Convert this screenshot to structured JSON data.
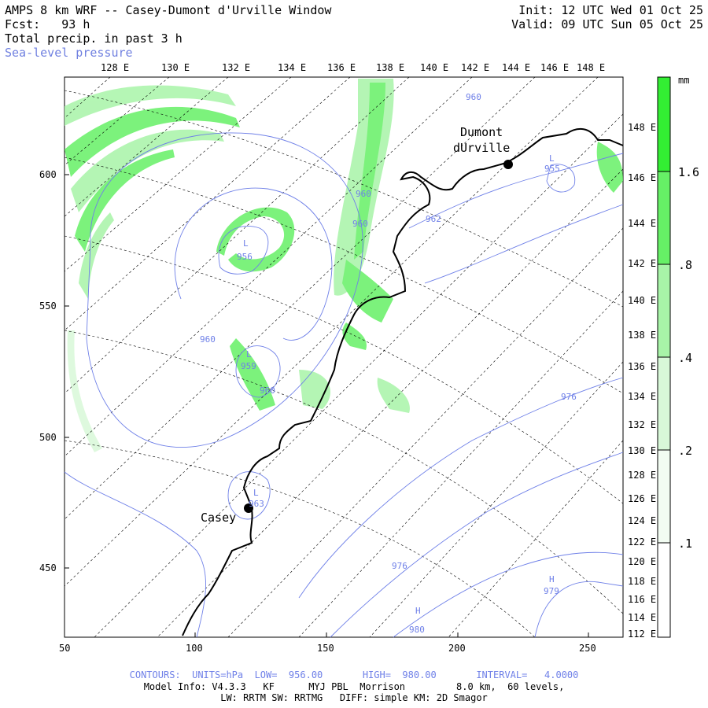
{
  "header": {
    "title": "AMPS 8 km WRF -- Casey-Dumont d'Urville Window",
    "fcst_label": "Fcst:",
    "fcst_value": "93 h",
    "field": "Total precip. in past 3 h",
    "overlay": "Sea-level pressure",
    "init": "Init: 12 UTC Wed 01 Oct 25",
    "valid": "Valid: 09 UTC Sun 05 Oct 25"
  },
  "map": {
    "top_lon_labels": [
      "128 E",
      "130 E",
      "132 E",
      "134 E",
      "136 E",
      "138 E",
      "140 E",
      "142 E",
      "144 E",
      "146 E",
      "148 E"
    ],
    "right_lon_labels": [
      "148 E",
      "146 E",
      "144 E",
      "142 E",
      "140 E",
      "138 E",
      "136 E",
      "134 E",
      "132 E",
      "130 E",
      "128 E",
      "126 E",
      "124 E",
      "122 E",
      "120 E",
      "118 E",
      "116 E",
      "114 E",
      "112 E"
    ],
    "x_ticks": [
      "50",
      "100",
      "150",
      "200",
      "250"
    ],
    "y_ticks": [
      "600",
      "550",
      "500",
      "450"
    ],
    "stations": [
      {
        "name": "Dumont",
        "name2": "dUrville"
      },
      {
        "name": "Casey",
        "name2": ""
      }
    ],
    "pressure_labels": [
      {
        "text": "960"
      },
      {
        "text": "955",
        "low": "L"
      },
      {
        "text": "960"
      },
      {
        "text": "960"
      },
      {
        "text": "962"
      },
      {
        "text": "956",
        "low": "L"
      },
      {
        "text": "960"
      },
      {
        "text": "959",
        "low": "L"
      },
      {
        "text": "960"
      },
      {
        "text": "963",
        "low": "L"
      },
      {
        "text": "976"
      },
      {
        "text": "976"
      },
      {
        "text": "979",
        "high": "H"
      },
      {
        "text": "980",
        "high": "H"
      }
    ]
  },
  "colorbar": {
    "unit": "mm",
    "labels": [
      "1.6",
      ".8",
      ".4",
      ".2",
      ".1"
    ],
    "colors": [
      "#33ee33",
      "#66f066",
      "#a8f4a8",
      "#d8f8d8",
      "#f2fcf2"
    ]
  },
  "footer": {
    "contours": "CONTOURS:  UNITS=hPa  LOW=  956.00       HIGH=  980.00       INTERVAL=   4.0000",
    "model": "Model Info: V4.3.3   KF      MYJ PBL  Morrison         8.0 km,  60 levels,",
    "physics": "LW: RRTM SW: RRTMG   DIFF: simple KM: 2D Smagor"
  },
  "colors": {
    "contour": "#6f80e8",
    "precip": "#4de34d",
    "coast": "#000000"
  }
}
